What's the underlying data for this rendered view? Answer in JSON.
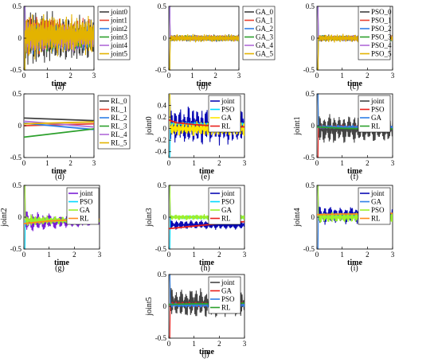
{
  "figure": {
    "panel_letters": [
      "(a)",
      "(b)",
      "(c)",
      "(d)",
      "(e)",
      "(f)",
      "(g)",
      "(h)",
      "(i)",
      "(j)"
    ]
  },
  "chart_data": [
    {
      "id": "a",
      "type": "line",
      "title": "",
      "xlabel": "time",
      "ylabel": "",
      "xlim": [
        0,
        3
      ],
      "ylim": [
        -0.5,
        0.5
      ],
      "xticks": [
        "0",
        "1",
        "2",
        "3"
      ],
      "yticks": [
        "0.5",
        "0",
        "-0.5"
      ],
      "grid": false,
      "legend": "top-right",
      "series": [
        {
          "name": "joint0",
          "color": "#404040",
          "amp": 0.35,
          "offset": 0.0,
          "freq": 27,
          "decay": 0.15
        },
        {
          "name": "joint1",
          "color": "#e8402f",
          "amp": 0.25,
          "offset": 0.05,
          "freq": 25,
          "decay": 0.15
        },
        {
          "name": "joint2",
          "color": "#2f7fe6",
          "amp": 0.2,
          "offset": 0.0,
          "freq": 23,
          "decay": 0.15
        },
        {
          "name": "joint3",
          "color": "#2ca02c",
          "amp": 0.18,
          "offset": 0.0,
          "freq": 21,
          "decay": 0.15
        },
        {
          "name": "joint4",
          "color": "#b06ad8",
          "amp": 0.2,
          "offset": 0.0,
          "freq": 24,
          "decay": 0.15
        },
        {
          "name": "joint5",
          "color": "#e3b300",
          "amp": 0.3,
          "offset": 0.05,
          "freq": 26,
          "decay": 0.15
        }
      ]
    },
    {
      "id": "b",
      "type": "line",
      "title": "",
      "xlabel": "time",
      "ylabel": "",
      "xlim": [
        0,
        3
      ],
      "ylim": [
        -0.5,
        0.5
      ],
      "xticks": [
        "0",
        "1",
        "2",
        "3"
      ],
      "yticks": [
        "0.5",
        "0",
        "-0.5"
      ],
      "grid": false,
      "legend": "top-right",
      "series": [
        {
          "name": "GA_0",
          "color": "#404040",
          "amp": 0.06,
          "offset": 0.0,
          "freq": 30,
          "decay": 0
        },
        {
          "name": "GA_1",
          "color": "#e8402f",
          "amp": 0.05,
          "offset": 0.0,
          "freq": 28,
          "decay": 0
        },
        {
          "name": "GA_2",
          "color": "#2f7fe6",
          "amp": 0.05,
          "offset": 0.0,
          "freq": 26,
          "decay": 0
        },
        {
          "name": "GA_3",
          "color": "#2ca02c",
          "amp": 0.05,
          "offset": 0.0,
          "freq": 24,
          "decay": 0
        },
        {
          "name": "GA_4",
          "color": "#b06ad8",
          "amp": 0.05,
          "offset": 0.0,
          "freq": 29,
          "decay": 0
        },
        {
          "name": "GA_5",
          "color": "#e3b300",
          "amp": 0.07,
          "offset": 0.0,
          "freq": 27,
          "decay": 0
        }
      ]
    },
    {
      "id": "c",
      "type": "line",
      "title": "",
      "xlabel": "time",
      "ylabel": "",
      "xlim": [
        0,
        3
      ],
      "ylim": [
        -0.5,
        0.5
      ],
      "xticks": [
        "0",
        "1",
        "2",
        "3"
      ],
      "yticks": [
        "0.5",
        "0",
        "-0.5"
      ],
      "grid": false,
      "legend": "top-right",
      "series": [
        {
          "name": "PSO_0",
          "color": "#404040",
          "amp": 0.06,
          "offset": 0.0,
          "freq": 30,
          "decay": 0
        },
        {
          "name": "PSO_1",
          "color": "#e8402f",
          "amp": 0.05,
          "offset": 0.0,
          "freq": 28,
          "decay": 0
        },
        {
          "name": "PSO_2",
          "color": "#2f7fe6",
          "amp": 0.05,
          "offset": 0.0,
          "freq": 26,
          "decay": 0
        },
        {
          "name": "PSO_3",
          "color": "#2ca02c",
          "amp": 0.05,
          "offset": 0.0,
          "freq": 24,
          "decay": 0
        },
        {
          "name": "PSO_4",
          "color": "#b06ad8",
          "amp": 0.05,
          "offset": 0.0,
          "freq": 29,
          "decay": 0
        },
        {
          "name": "PSO_5",
          "color": "#e3b300",
          "amp": 0.07,
          "offset": 0.0,
          "freq": 27,
          "decay": 0
        }
      ]
    },
    {
      "id": "d",
      "type": "line",
      "title": "",
      "xlabel": "time",
      "ylabel": "",
      "xlim": [
        0,
        3
      ],
      "ylim": [
        -0.5,
        0.5
      ],
      "xticks": [
        "0",
        "1",
        "2",
        "3"
      ],
      "yticks": [
        "0.5",
        "0",
        "-0.5"
      ],
      "grid": false,
      "legend": "top-right",
      "series": [
        {
          "name": "RL_0",
          "color": "#404040",
          "x": [
            0,
            3
          ],
          "y": [
            0.12,
            0.08
          ]
        },
        {
          "name": "RL_1",
          "color": "#e8402f",
          "x": [
            0,
            3
          ],
          "y": [
            0.0,
            0.03
          ]
        },
        {
          "name": "RL_2",
          "color": "#2f7fe6",
          "x": [
            0,
            3
          ],
          "y": [
            0.04,
            -0.06
          ]
        },
        {
          "name": "RL_3",
          "color": "#2ca02c",
          "x": [
            0,
            3
          ],
          "y": [
            -0.18,
            -0.05
          ]
        },
        {
          "name": "RL_4",
          "color": "#b06ad8",
          "x": [
            0,
            3
          ],
          "y": [
            0.07,
            -0.02
          ]
        },
        {
          "name": "RL_5",
          "color": "#e3b300",
          "x": [
            0,
            3
          ],
          "y": [
            0.03,
            0.06
          ]
        }
      ]
    },
    {
      "id": "e",
      "type": "line",
      "title": "",
      "xlabel": "time",
      "ylabel": "joint0",
      "xlim": [
        0,
        3
      ],
      "ylim": [
        -0.5,
        0.6
      ],
      "xticks": [
        "0",
        "1",
        "2",
        "3"
      ],
      "yticks": [
        "0.4",
        "0.2",
        "0",
        "-0.2",
        "-0.4"
      ],
      "grid": false,
      "legend": "top-right",
      "series": [
        {
          "name": "joint",
          "color": "#0a0ab4",
          "amp": 0.35,
          "offset": 0.05,
          "freq": 18,
          "decay": 0
        },
        {
          "name": "PSO",
          "color": "#00d8ff",
          "amp": 0.03,
          "offset": 0.08,
          "freq": 25,
          "decay": 0
        },
        {
          "name": "GA",
          "color": "#ffe800",
          "amp": 0.15,
          "offset": 0.0,
          "freq": 22,
          "decay": 0
        },
        {
          "name": "RL",
          "color": "#e8201c",
          "x": [
            0,
            0.3,
            1,
            2,
            3
          ],
          "y": [
            0.15,
            0.1,
            0.07,
            0.04,
            0.03
          ]
        }
      ]
    },
    {
      "id": "f",
      "type": "line",
      "title": "",
      "xlabel": "time",
      "ylabel": "joint1",
      "xlim": [
        0,
        3
      ],
      "ylim": [
        -0.5,
        0.5
      ],
      "xticks": [
        "0",
        "1",
        "2",
        "3"
      ],
      "yticks": [
        "0.5",
        "0",
        "-0.5"
      ],
      "grid": false,
      "legend": "top-right",
      "series": [
        {
          "name": "joint",
          "color": "#444444",
          "amp": 0.25,
          "offset": -0.05,
          "freq": 16,
          "decay": 0
        },
        {
          "name": "PSO",
          "color": "#e8201c",
          "amp": 0.03,
          "offset": -0.02,
          "freq": 25,
          "decay": 0
        },
        {
          "name": "GA",
          "color": "#2f7fe6",
          "amp": 0.03,
          "offset": -0.02,
          "freq": 22,
          "decay": 0
        },
        {
          "name": "RL",
          "color": "#2ca02c",
          "x": [
            0,
            1,
            2,
            3
          ],
          "y": [
            -0.02,
            -0.04,
            -0.05,
            -0.05
          ]
        }
      ]
    },
    {
      "id": "g",
      "type": "line",
      "title": "",
      "xlabel": "time",
      "ylabel": "joint2",
      "xlim": [
        0,
        3
      ],
      "ylim": [
        -0.5,
        0.5
      ],
      "xticks": [
        "0",
        "1",
        "2",
        "3"
      ],
      "yticks": [
        "0.5",
        "0",
        "-0.5"
      ],
      "grid": false,
      "legend": "top-right",
      "series": [
        {
          "name": "joint",
          "color": "#7b1fd6",
          "amp": 0.15,
          "offset": -0.07,
          "freq": 14,
          "decay": 0.7
        },
        {
          "name": "PSO",
          "color": "#00d8ff",
          "amp": 0.02,
          "offset": -0.05,
          "freq": 25,
          "decay": 0
        },
        {
          "name": "GA",
          "color": "#9cf02a",
          "amp": 0.08,
          "offset": -0.05,
          "freq": 20,
          "decay": 0.5
        },
        {
          "name": "RL",
          "color": "#ff8c1a",
          "x": [
            0,
            1,
            2,
            3
          ],
          "y": [
            -0.1,
            -0.06,
            -0.04,
            -0.03
          ]
        }
      ]
    },
    {
      "id": "h",
      "type": "line",
      "title": "",
      "xlabel": "time",
      "ylabel": "joint3",
      "xlim": [
        0,
        3
      ],
      "ylim": [
        -0.5,
        0.5
      ],
      "xticks": [
        "0",
        "1",
        "2",
        "3"
      ],
      "yticks": [
        "0.5",
        "0",
        "-0.5"
      ],
      "grid": false,
      "legend": "top-right",
      "series": [
        {
          "name": "joint",
          "color": "#0a0ab4",
          "amp": 0.08,
          "offset": -0.12,
          "freq": 16,
          "decay": 0
        },
        {
          "name": "PSO",
          "color": "#00d8ff",
          "amp": 0.03,
          "offset": 0.0,
          "freq": 25,
          "decay": 0
        },
        {
          "name": "GA",
          "color": "#9cf02a",
          "amp": 0.05,
          "offset": 0.0,
          "freq": 22,
          "decay": 0
        },
        {
          "name": "RL",
          "color": "#e8201c",
          "x": [
            0,
            1,
            2,
            3
          ],
          "y": [
            -0.18,
            -0.14,
            -0.1,
            -0.07
          ]
        }
      ]
    },
    {
      "id": "i",
      "type": "line",
      "title": "",
      "xlabel": "time",
      "ylabel": "joint4",
      "xlim": [
        0,
        3
      ],
      "ylim": [
        -0.5,
        0.5
      ],
      "xticks": [
        "0",
        "1",
        "2",
        "3"
      ],
      "yticks": [
        "0.5",
        "0",
        "-0.5"
      ],
      "grid": false,
      "legend": "top-right",
      "series": [
        {
          "name": "joint",
          "color": "#0a0ab4",
          "amp": 0.15,
          "offset": 0.03,
          "freq": 15,
          "decay": 0
        },
        {
          "name": "GA",
          "color": "#2f7fe6",
          "amp": 0.04,
          "offset": 0.02,
          "freq": 24,
          "decay": 0
        },
        {
          "name": "PSO",
          "color": "#9cf02a",
          "amp": 0.1,
          "offset": 0.0,
          "freq": 20,
          "decay": 0
        },
        {
          "name": "RL",
          "color": "#ff8c1a",
          "x": [
            0,
            1,
            2,
            3
          ],
          "y": [
            0.04,
            0.05,
            0.05,
            0.06
          ]
        }
      ]
    },
    {
      "id": "j",
      "type": "line",
      "title": "",
      "xlabel": "time",
      "ylabel": "joint5",
      "xlim": [
        0,
        3
      ],
      "ylim": [
        -0.5,
        0.5
      ],
      "xticks": [
        "0",
        "1",
        "2",
        "3"
      ],
      "yticks": [
        "0.5",
        "0",
        "-0.5"
      ],
      "grid": false,
      "legend": "top-right",
      "series": [
        {
          "name": "joint",
          "color": "#444444",
          "amp": 0.25,
          "offset": 0.05,
          "freq": 16,
          "decay": 0
        },
        {
          "name": "GA",
          "color": "#e8201c",
          "amp": 0.05,
          "offset": 0.03,
          "freq": 24,
          "decay": 0
        },
        {
          "name": "PSO",
          "color": "#2f7fe6",
          "amp": 0.04,
          "offset": 0.02,
          "freq": 22,
          "decay": 0
        },
        {
          "name": "RL",
          "color": "#2ca02c",
          "x": [
            0,
            1,
            2,
            3
          ],
          "y": [
            0.03,
            0.04,
            0.04,
            0.05
          ]
        }
      ]
    }
  ]
}
